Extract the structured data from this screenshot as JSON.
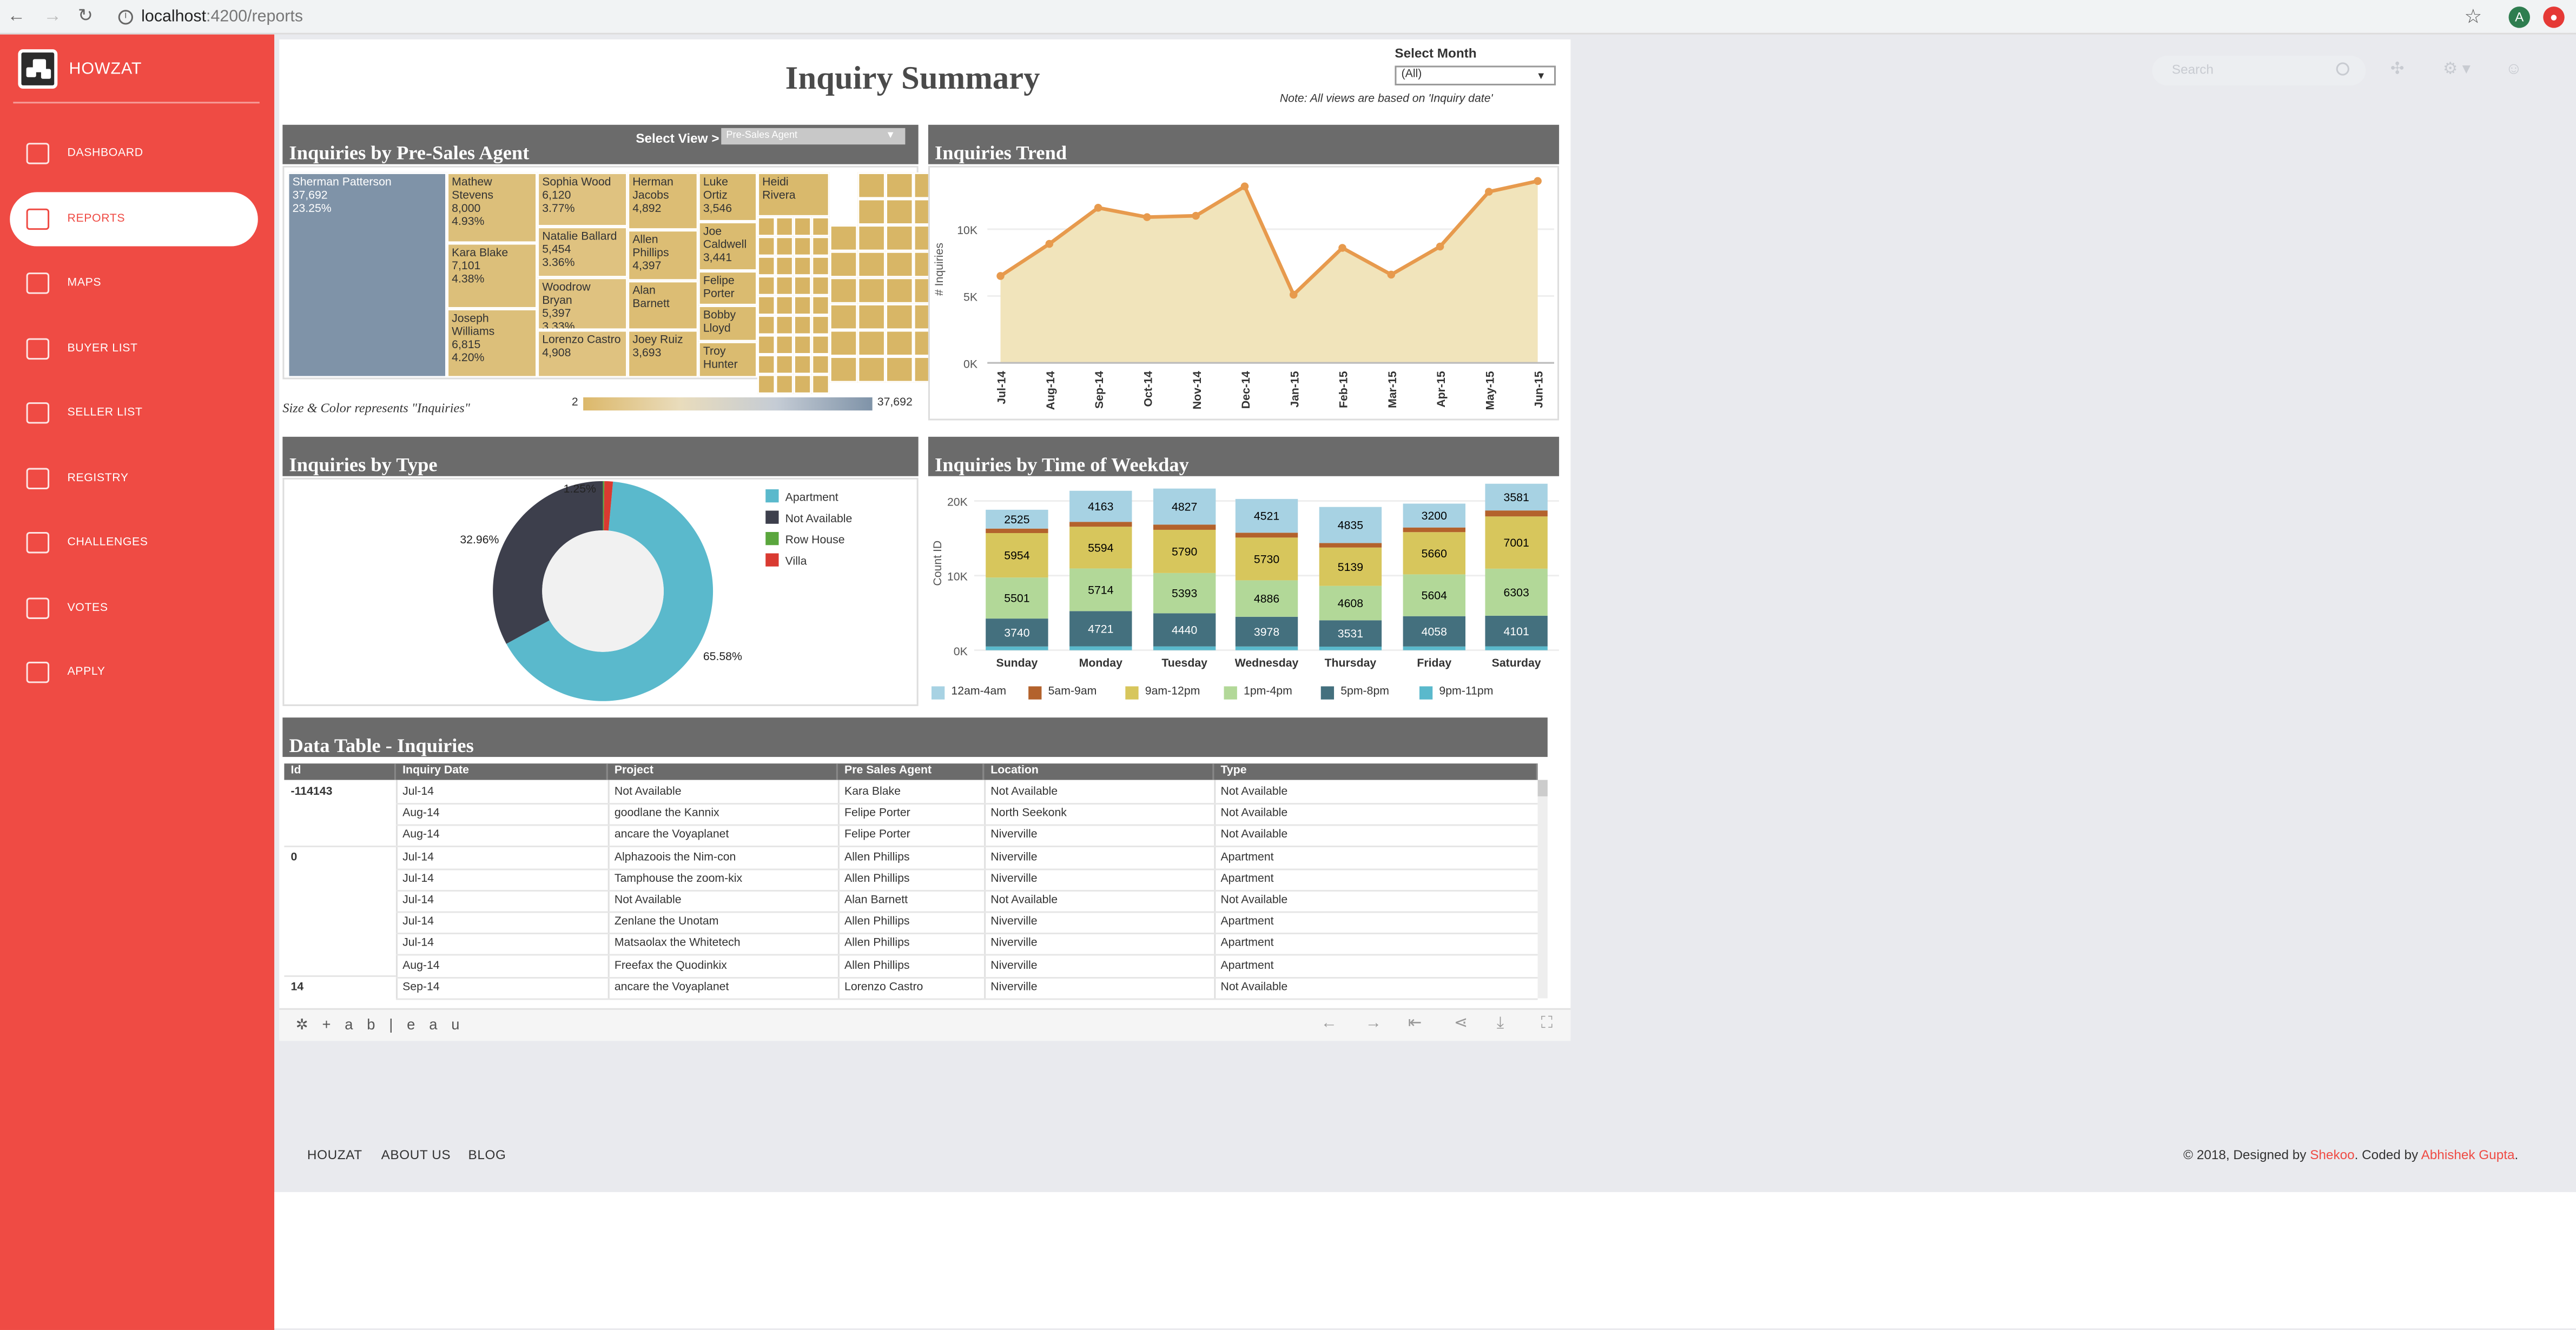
{
  "browser": {
    "url_host": "localhost",
    "url_path": ":4200/reports",
    "profile_initial": "A"
  },
  "sidebar": {
    "brand": "HOWZAT",
    "items": [
      {
        "label": "DASHBOARD",
        "icon": "cube-icon"
      },
      {
        "label": "REPORTS",
        "icon": "report-icon",
        "active": true
      },
      {
        "label": "MAPS",
        "icon": "map-icon"
      },
      {
        "label": "BUYER LIST",
        "icon": "buyer-icon"
      },
      {
        "label": "SELLER LIST",
        "icon": "store-icon"
      },
      {
        "label": "REGISTRY",
        "icon": "registry-icon"
      },
      {
        "label": "CHALLENGES",
        "icon": "glasses-icon"
      },
      {
        "label": "VOTES",
        "icon": "votes-icon"
      },
      {
        "label": "APPLY",
        "icon": "apply-icon"
      }
    ]
  },
  "topbar": {
    "search_placeholder": "Search"
  },
  "report": {
    "title": "Inquiry Summary",
    "select_month_label": "Select Month",
    "select_month_value": "(All)",
    "note": "Note: All views are based on 'Inquiry date'"
  },
  "agent_panel": {
    "title": "Inquiries by Pre-Sales Agent",
    "select_view_label": "Select View >",
    "select_view_value": "Pre-Sales Agent",
    "legend_caption": "Size & Color represents \"Inquiries\"",
    "legend_min": "2",
    "legend_max": "37,692",
    "cells": [
      {
        "name": "Sherman Patterson",
        "value": "37,692",
        "pct": "23.25%"
      },
      {
        "name": "Mathew Stevens",
        "value": "8,000",
        "pct": "4.93%"
      },
      {
        "name": "Kara Blake",
        "value": "7,101",
        "pct": "4.38%"
      },
      {
        "name": "Joseph Williams",
        "value": "6,815",
        "pct": "4.20%"
      },
      {
        "name": "Sophia Wood",
        "value": "6,120",
        "pct": "3.77%"
      },
      {
        "name": "Natalie Ballard",
        "value": "5,454",
        "pct": "3.36%"
      },
      {
        "name": "Woodrow Bryan",
        "value": "5,397",
        "pct": "3.33%"
      },
      {
        "name": "Lorenzo Castro",
        "value": "4,908",
        "pct": ""
      },
      {
        "name": "Herman Jacobs",
        "value": "4,892",
        "pct": ""
      },
      {
        "name": "Allen Phillips",
        "value": "4,397",
        "pct": ""
      },
      {
        "name": "Alan Barnett",
        "value": "",
        "pct": ""
      },
      {
        "name": "Joey Ruiz",
        "value": "3,693",
        "pct": ""
      },
      {
        "name": "Luke Ortiz",
        "value": "3,546",
        "pct": ""
      },
      {
        "name": "Joe Caldwell",
        "value": "3,441",
        "pct": ""
      },
      {
        "name": "Felipe Porter",
        "value": "",
        "pct": ""
      },
      {
        "name": "Bobby Lloyd",
        "value": "",
        "pct": ""
      },
      {
        "name": "Troy Hunter",
        "value": "",
        "pct": ""
      },
      {
        "name": "Heidi Rivera",
        "value": "",
        "pct": ""
      }
    ]
  },
  "trend_panel": {
    "title": "Inquiries Trend"
  },
  "type_panel": {
    "title": "Inquiries by Type"
  },
  "weekday_panel": {
    "title": "Inquiries by Time of Weekday"
  },
  "chart_data": [
    {
      "type": "area",
      "title": "Inquiries Trend",
      "ylabel": "# Inquiries",
      "x": [
        "Jul-14",
        "Aug-14",
        "Sep-14",
        "Oct-14",
        "Nov-14",
        "Dec-14",
        "Jan-15",
        "Feb-15",
        "Mar-15",
        "Apr-15",
        "May-15",
        "Jun-15"
      ],
      "values": [
        6500,
        8900,
        11600,
        10900,
        11000,
        13200,
        5100,
        8600,
        6600,
        8700,
        12800,
        13600
      ],
      "ylim": [
        0,
        14000
      ],
      "yticks": [
        "0K",
        "5K",
        "10K"
      ],
      "color": "#e79a4d"
    },
    {
      "type": "pie",
      "title": "Inquiries by Type",
      "donut": true,
      "series": [
        {
          "name": "Apartment",
          "value": 65.58,
          "label": "65.58%",
          "color": "#5ab9cc"
        },
        {
          "name": "Not Available",
          "value": 32.96,
          "label": "32.96%",
          "color": "#3d3f4c"
        },
        {
          "name": "Row House",
          "value": 0.21,
          "label": "",
          "color": "#5aa63d"
        },
        {
          "name": "Villa",
          "value": 1.25,
          "label": "1.25%",
          "color": "#d93a31"
        }
      ]
    },
    {
      "type": "bar",
      "stacked": true,
      "title": "Inquiries by Time of Weekday",
      "ylabel": "Count ID",
      "ylim": [
        0,
        22000
      ],
      "yticks": [
        "0K",
        "10K",
        "20K"
      ],
      "categories": [
        "Sunday",
        "Monday",
        "Tuesday",
        "Wednesday",
        "Thursday",
        "Friday",
        "Saturday"
      ],
      "series": [
        {
          "name": "9pm-11pm",
          "color": "#5ab9cc",
          "values": [
            500,
            520,
            510,
            500,
            480,
            500,
            520
          ]
        },
        {
          "name": "5pm-8pm",
          "color": "#44707e",
          "values": [
            3740,
            4721,
            4440,
            3978,
            3531,
            4058,
            4101
          ]
        },
        {
          "name": "1pm-4pm",
          "color": "#b2d898",
          "values": [
            5501,
            5714,
            5393,
            4886,
            4608,
            5604,
            6303
          ]
        },
        {
          "name": "9am-12pm",
          "color": "#d7c65c",
          "values": [
            5954,
            5594,
            5790,
            5730,
            5139,
            5660,
            7001
          ]
        },
        {
          "name": "5am-9am",
          "color": "#b3622c",
          "values": [
            600,
            650,
            700,
            650,
            600,
            620,
            800
          ]
        },
        {
          "name": "12am-4am",
          "color": "#a7d2e3",
          "values": [
            2525,
            4163,
            4827,
            4521,
            4835,
            3200,
            3581
          ]
        }
      ],
      "legend_order": [
        "12am-4am",
        "5am-9am",
        "9am-12pm",
        "1pm-4pm",
        "5pm-8pm",
        "9pm-11pm"
      ]
    }
  ],
  "data_table": {
    "title": "Data Table - Inquiries",
    "columns": [
      "Id",
      "Inquiry Date",
      "Project",
      "Pre Sales Agent",
      "Location",
      "Type"
    ],
    "rows": [
      [
        "-114143",
        "Jul-14",
        "Not Available",
        "Kara Blake",
        "Not Available",
        "Not Available"
      ],
      [
        "",
        "Aug-14",
        "goodlane the Kannix",
        "Felipe Porter",
        "North Seekonk",
        "Not Available"
      ],
      [
        "",
        "Aug-14",
        "ancare the Voyaplanet",
        "Felipe Porter",
        "Niverville",
        "Not Available"
      ],
      [
        "0",
        "Jul-14",
        "Alphazoois the Nim-con",
        "Allen Phillips",
        "Niverville",
        "Apartment"
      ],
      [
        "",
        "Jul-14",
        "Tamphouse the zoom-kix",
        "Allen Phillips",
        "Niverville",
        "Apartment"
      ],
      [
        "",
        "Jul-14",
        "Not Available",
        "Alan Barnett",
        "Not Available",
        "Not Available"
      ],
      [
        "",
        "Jul-14",
        "Zenlane the Unotam",
        "Allen Phillips",
        "Niverville",
        "Apartment"
      ],
      [
        "",
        "Jul-14",
        "Matsaolax the Whitetech",
        "Allen Phillips",
        "Niverville",
        "Apartment"
      ],
      [
        "",
        "Aug-14",
        "Freefax the Quodinkix",
        "Allen Phillips",
        "Niverville",
        "Apartment"
      ],
      [
        "14",
        "Sep-14",
        "ancare the Voyaplanet",
        "Lorenzo Castro",
        "Niverville",
        "Not Available"
      ]
    ]
  },
  "tableau": {
    "logo": "+ a b | e a u"
  },
  "footer": {
    "links": [
      "HOUZAT",
      "ABOUT US",
      "BLOG"
    ],
    "copy_prefix": "© 2018, Designed by ",
    "designer": "Shekoo",
    "copy_mid": ". Coded by ",
    "coder": "Abhishek Gupta",
    "copy_suffix": "."
  }
}
